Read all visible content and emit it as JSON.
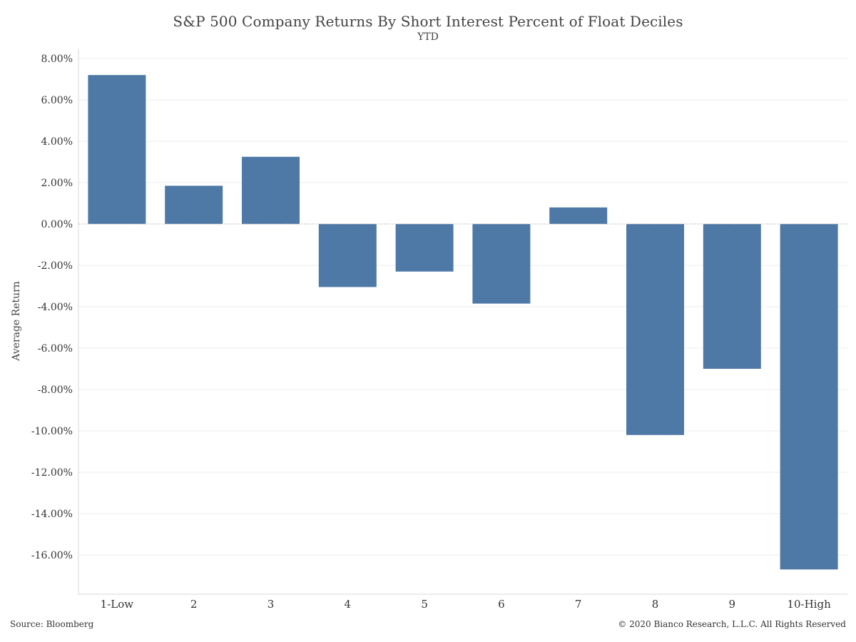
{
  "chart_data": {
    "type": "bar",
    "title": "S&P 500 Company Returns By Short Interest Percent of Float Deciles",
    "subtitle": "YTD",
    "ylabel": "Average Return",
    "xlabel": "",
    "categories": [
      "1-Low",
      "2",
      "3",
      "4",
      "5",
      "6",
      "7",
      "8",
      "9",
      "10-High"
    ],
    "values": [
      7.2,
      1.85,
      3.25,
      -3.05,
      -2.3,
      -3.85,
      0.8,
      -10.2,
      -7.0,
      -16.7
    ],
    "value_format": "percent_2dp",
    "ylim": [
      -18,
      8
    ],
    "yticks": [
      8,
      6,
      4,
      2,
      0,
      -2,
      -4,
      -6,
      -8,
      -10,
      -12,
      -14,
      -16
    ],
    "ytick_labels": [
      "8.00%",
      "6.00%",
      "4.00%",
      "2.00%",
      "0.00%",
      "-2.00%",
      "-4.00%",
      "-6.00%",
      "-8.00%",
      "-10.00%",
      "-12.00%",
      "-14.00%",
      "-16.00%"
    ],
    "grid": true,
    "legend": "none",
    "bar_color": "#4e79a7"
  },
  "footer": {
    "source": "Source: Bloomberg",
    "copyright": "© 2020 Bianco Research, L.L.C. All Rights Reserved"
  }
}
